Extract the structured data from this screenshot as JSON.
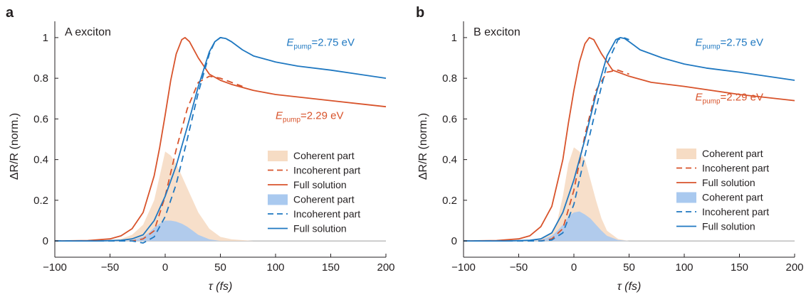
{
  "colors": {
    "orange": "#d8532b",
    "blue": "#1f78c1",
    "orange_fill": "#f6dcc4",
    "blue_fill": "#a9c9ef",
    "axis": "#231f20",
    "zero_line": "#9d9d9d"
  },
  "chart_data": [
    {
      "type": "line",
      "panel_letter": "a",
      "title": "A exciton",
      "xlabel": "τ (fs)",
      "ylabel": "ΔR/R (norm.)",
      "xlim": [
        -100,
        200
      ],
      "ylim": [
        -0.08,
        1.08
      ],
      "xticks": [
        -100,
        -50,
        0,
        50,
        100,
        150,
        200
      ],
      "yticks": [
        0,
        0.2,
        0.4,
        0.6,
        0.8,
        1
      ],
      "grid": false,
      "legend_position": "bottom-right",
      "annotations": [
        {
          "base": "E",
          "sub": "pump",
          "text": "=2.75 eV",
          "color": "blue",
          "x": 110,
          "y": 0.96
        },
        {
          "base": "E",
          "sub": "pump",
          "text": "=2.29 eV",
          "color": "orange",
          "x": 100,
          "y": 0.6
        }
      ],
      "series": [
        {
          "name": "Coherent part",
          "pump": "2.29 eV",
          "kind": "area",
          "color": "orange_fill",
          "x": [
            -100,
            -60,
            -40,
            -30,
            -20,
            -10,
            -5,
            0,
            5,
            10,
            15,
            20,
            30,
            40,
            50,
            60,
            80,
            200
          ],
          "y": [
            0,
            0,
            0.01,
            0.03,
            0.08,
            0.2,
            0.32,
            0.44,
            0.42,
            0.38,
            0.32,
            0.26,
            0.14,
            0.06,
            0.02,
            0.008,
            0,
            0
          ]
        },
        {
          "name": "Incoherent part",
          "pump": "2.29 eV",
          "kind": "dashed",
          "color": "orange",
          "x": [
            -100,
            -60,
            -40,
            -30,
            -20,
            -10,
            0,
            10,
            20,
            30,
            40,
            50,
            60,
            70
          ],
          "y": [
            0,
            0,
            0,
            0,
            0.01,
            0.05,
            0.22,
            0.45,
            0.65,
            0.78,
            0.81,
            0.8,
            0.78,
            0.76
          ]
        },
        {
          "name": "Full solution",
          "pump": "2.29 eV",
          "kind": "solid",
          "color": "orange",
          "x": [
            -100,
            -70,
            -50,
            -40,
            -30,
            -20,
            -10,
            -5,
            0,
            5,
            10,
            15,
            18,
            22,
            30,
            40,
            50,
            60,
            80,
            100,
            150,
            200
          ],
          "y": [
            0,
            0.002,
            0.01,
            0.025,
            0.06,
            0.14,
            0.32,
            0.46,
            0.62,
            0.79,
            0.92,
            0.99,
            1.0,
            0.98,
            0.9,
            0.82,
            0.79,
            0.77,
            0.74,
            0.72,
            0.69,
            0.66
          ]
        },
        {
          "name": "Coherent part",
          "pump": "2.75 eV",
          "kind": "area",
          "color": "blue_fill",
          "x": [
            -100,
            -40,
            -30,
            -20,
            -15,
            -10,
            -5,
            0,
            5,
            10,
            15,
            20,
            25,
            30,
            40,
            50,
            200
          ],
          "y": [
            0,
            0,
            0.005,
            0.02,
            0.04,
            0.065,
            0.085,
            0.1,
            0.1,
            0.095,
            0.085,
            0.07,
            0.05,
            0.03,
            0.008,
            0,
            0
          ]
        },
        {
          "name": "Incoherent part",
          "pump": "2.75 eV",
          "kind": "dashed",
          "color": "blue",
          "x": [
            -100,
            -60,
            -30,
            -20,
            -10,
            0,
            10,
            20,
            30,
            40,
            45,
            50,
            55,
            60
          ],
          "y": [
            0,
            0,
            0,
            -0.01,
            0.02,
            0.12,
            0.28,
            0.5,
            0.73,
            0.92,
            0.98,
            1.0,
            0.995,
            0.98
          ]
        },
        {
          "name": "Full solution",
          "pump": "2.75 eV",
          "kind": "solid",
          "color": "blue",
          "x": [
            -100,
            -60,
            -40,
            -30,
            -20,
            -10,
            0,
            10,
            20,
            30,
            40,
            45,
            50,
            55,
            60,
            70,
            80,
            100,
            120,
            150,
            200
          ],
          "y": [
            0,
            0,
            0.003,
            0.01,
            0.03,
            0.1,
            0.22,
            0.37,
            0.56,
            0.76,
            0.93,
            0.98,
            1.0,
            0.995,
            0.98,
            0.94,
            0.91,
            0.88,
            0.86,
            0.84,
            0.8
          ]
        }
      ]
    },
    {
      "type": "line",
      "panel_letter": "b",
      "title": "B exciton",
      "xlabel": "τ (fs)",
      "ylabel": "ΔR/R (norm.)",
      "xlim": [
        -100,
        200
      ],
      "ylim": [
        -0.08,
        1.08
      ],
      "xticks": [
        -100,
        -50,
        0,
        50,
        100,
        150,
        200
      ],
      "yticks": [
        0,
        0.2,
        0.4,
        0.6,
        0.8,
        1
      ],
      "grid": false,
      "legend_position": "bottom-right",
      "annotations": [
        {
          "base": "E",
          "sub": "pump",
          "text": "=2.75 eV",
          "color": "blue",
          "x": 110,
          "y": 0.96
        },
        {
          "base": "E",
          "sub": "pump",
          "text": "=2.29 eV",
          "color": "orange",
          "x": 110,
          "y": 0.69
        }
      ],
      "series": [
        {
          "name": "Coherent part",
          "pump": "2.29 eV",
          "kind": "area",
          "color": "orange_fill",
          "x": [
            -100,
            -50,
            -30,
            -20,
            -15,
            -10,
            -5,
            0,
            5,
            10,
            15,
            20,
            25,
            30,
            40,
            50,
            200
          ],
          "y": [
            0,
            0,
            0.01,
            0.04,
            0.1,
            0.22,
            0.38,
            0.46,
            0.44,
            0.4,
            0.3,
            0.2,
            0.11,
            0.05,
            0.01,
            0,
            0
          ]
        },
        {
          "name": "Incoherent part",
          "pump": "2.29 eV",
          "kind": "dashed",
          "color": "orange",
          "x": [
            -100,
            -60,
            -40,
            -30,
            -20,
            -10,
            0,
            10,
            20,
            30,
            40,
            50
          ],
          "y": [
            0,
            0,
            0,
            0,
            0.01,
            0.06,
            0.25,
            0.52,
            0.74,
            0.83,
            0.84,
            0.82
          ]
        },
        {
          "name": "Full solution",
          "pump": "2.29 eV",
          "kind": "solid",
          "color": "orange",
          "x": [
            -100,
            -70,
            -50,
            -40,
            -30,
            -20,
            -10,
            -5,
            0,
            5,
            10,
            14,
            18,
            25,
            35,
            50,
            70,
            100,
            150,
            200
          ],
          "y": [
            0,
            0.002,
            0.01,
            0.025,
            0.07,
            0.17,
            0.4,
            0.58,
            0.74,
            0.88,
            0.97,
            1.0,
            0.99,
            0.92,
            0.84,
            0.81,
            0.78,
            0.76,
            0.72,
            0.69
          ]
        },
        {
          "name": "Coherent part",
          "pump": "2.75 eV",
          "kind": "area",
          "color": "blue_fill",
          "x": [
            -100,
            -40,
            -30,
            -20,
            -15,
            -10,
            -5,
            0,
            5,
            10,
            15,
            20,
            25,
            30,
            40,
            50,
            200
          ],
          "y": [
            0,
            0,
            0.005,
            0.025,
            0.05,
            0.08,
            0.12,
            0.14,
            0.145,
            0.13,
            0.11,
            0.08,
            0.05,
            0.025,
            0.005,
            0,
            0
          ]
        },
        {
          "name": "Incoherent part",
          "pump": "2.75 eV",
          "kind": "dashed",
          "color": "blue",
          "x": [
            -100,
            -60,
            -30,
            -20,
            -10,
            0,
            10,
            20,
            30,
            40,
            45,
            50
          ],
          "y": [
            0,
            0,
            0,
            0.005,
            0.04,
            0.18,
            0.42,
            0.65,
            0.87,
            0.99,
            1.0,
            0.99
          ]
        },
        {
          "name": "Full solution",
          "pump": "2.75 eV",
          "kind": "solid",
          "color": "blue",
          "x": [
            -100,
            -60,
            -40,
            -30,
            -20,
            -10,
            0,
            10,
            20,
            30,
            38,
            42,
            46,
            50,
            60,
            80,
            100,
            120,
            150,
            200
          ],
          "y": [
            0,
            0,
            0.003,
            0.01,
            0.04,
            0.14,
            0.3,
            0.5,
            0.72,
            0.91,
            0.99,
            1.0,
            0.995,
            0.98,
            0.94,
            0.9,
            0.87,
            0.85,
            0.83,
            0.79
          ]
        }
      ]
    }
  ]
}
